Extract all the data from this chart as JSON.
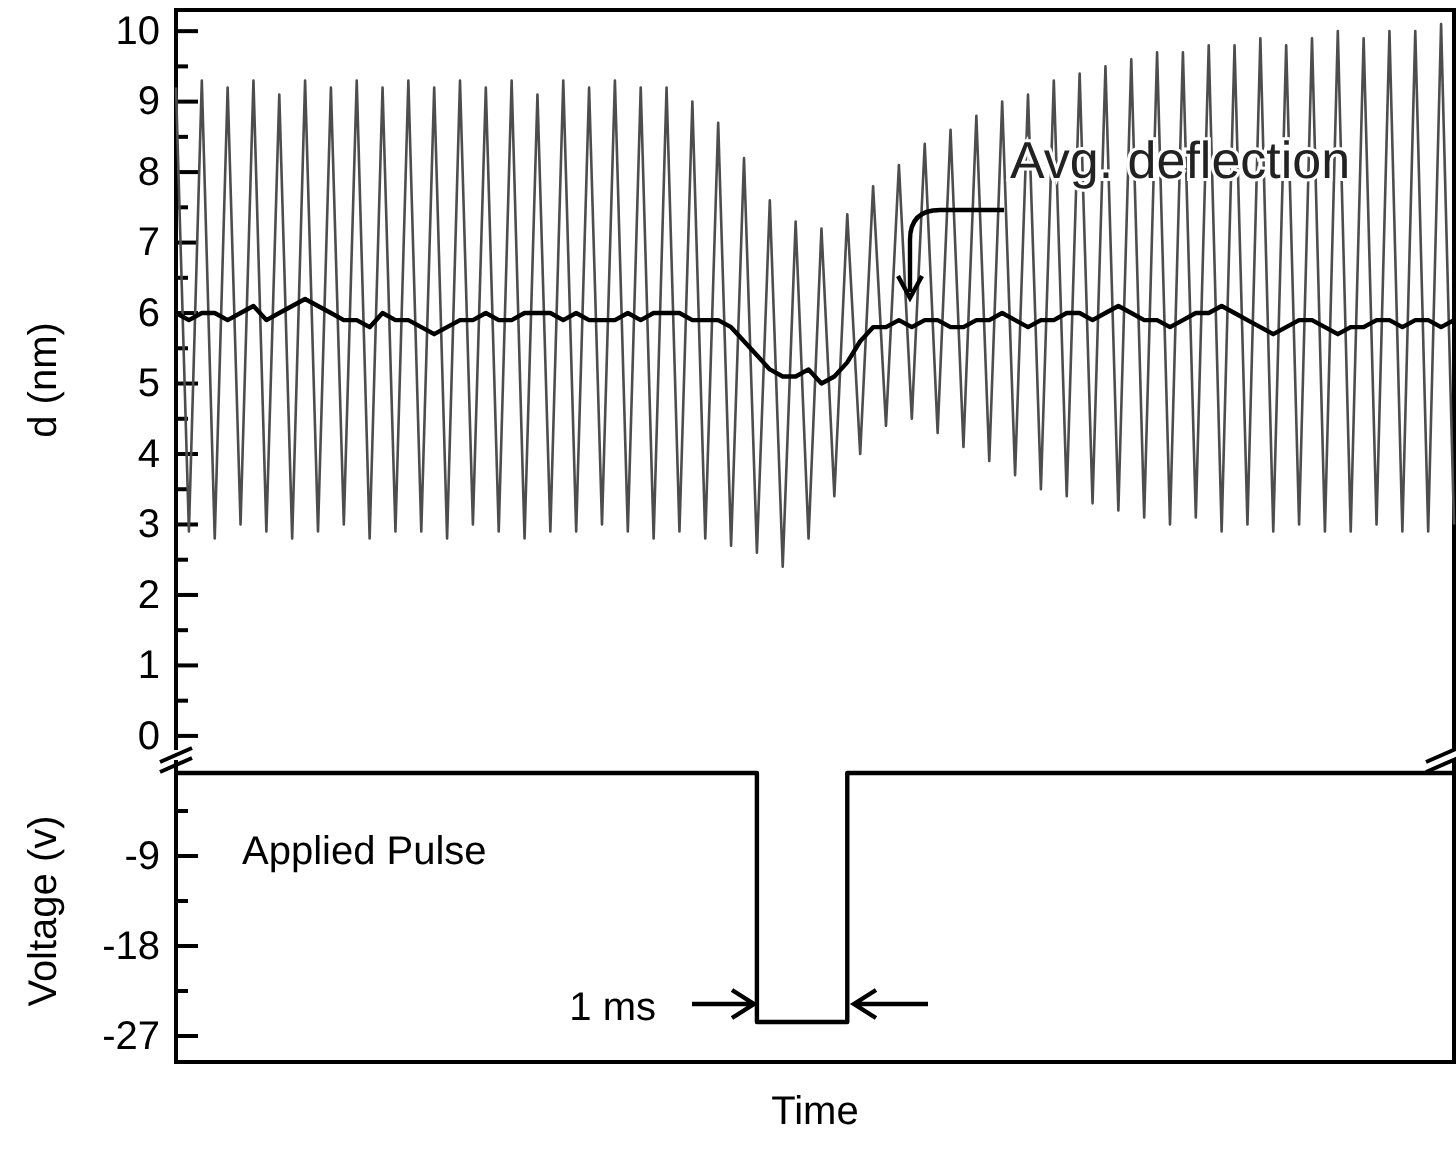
{
  "chart_data": [
    {
      "type": "line",
      "ylabel": "d (nm)",
      "categories": [
        null,
        null,
        null,
        null,
        null,
        null,
        null,
        null,
        null,
        null,
        null,
        null,
        null,
        null,
        null,
        null,
        null,
        null,
        null,
        null,
        null,
        null,
        null,
        null,
        null,
        null,
        null,
        null,
        null,
        null,
        null,
        null,
        null,
        null,
        null,
        null,
        null,
        null,
        null,
        null,
        null,
        null,
        null,
        null,
        null,
        null,
        null,
        null,
        null,
        null,
        null,
        null,
        null,
        null,
        null,
        null,
        null,
        null,
        null,
        null,
        null,
        null,
        null,
        null,
        null,
        null,
        null,
        null,
        null,
        null,
        null,
        null,
        null,
        null,
        null,
        null,
        null,
        null,
        null,
        null,
        null,
        null,
        null,
        null,
        null,
        null,
        null,
        null,
        null,
        null,
        null,
        null,
        null,
        null,
        null,
        null,
        null,
        null,
        null,
        null
      ],
      "series": [
        {
          "color": "#4d4d4d",
          "values": [
            9.2,
            2.9,
            9.3,
            2.8,
            9.2,
            3.0,
            9.3,
            2.9,
            9.1,
            2.8,
            9.3,
            2.9,
            9.2,
            3.0,
            9.3,
            2.8,
            9.2,
            2.9,
            9.3,
            2.9,
            9.2,
            2.8,
            9.3,
            3.0,
            9.2,
            2.9,
            9.3,
            2.8,
            9.1,
            2.9,
            9.3,
            2.9,
            9.2,
            3.0,
            9.3,
            2.9,
            9.2,
            2.8,
            9.2,
            2.9,
            9.0,
            2.8,
            8.7,
            2.7,
            8.2,
            2.6,
            7.6,
            2.4,
            7.3,
            2.8,
            7.2,
            3.4,
            7.4,
            4.0,
            7.8,
            4.4,
            8.1,
            4.5,
            8.4,
            4.3,
            8.6,
            4.1,
            8.8,
            3.9,
            9.0,
            3.7,
            9.1,
            3.5,
            9.3,
            3.4,
            9.4,
            3.3,
            9.5,
            3.2,
            9.6,
            3.1,
            9.7,
            3.0,
            9.7,
            3.1,
            9.8,
            2.9,
            9.8,
            3.0,
            9.9,
            2.9,
            9.8,
            3.0,
            9.9,
            2.9,
            10.0,
            2.9,
            9.9,
            3.0,
            10.0,
            2.9,
            10.0,
            2.9,
            10.1,
            3.0
          ]
        },
        {
          "name": "Avg. deflection",
          "color": "#000000",
          "values": [
            6.0,
            5.9,
            6.0,
            6.0,
            5.9,
            6.0,
            6.1,
            5.9,
            6.0,
            6.1,
            6.2,
            6.1,
            6.0,
            5.9,
            5.9,
            5.8,
            6.0,
            5.9,
            5.9,
            5.8,
            5.7,
            5.8,
            5.9,
            5.9,
            6.0,
            5.9,
            5.9,
            6.0,
            6.0,
            6.0,
            5.9,
            6.0,
            5.9,
            5.9,
            5.9,
            6.0,
            5.9,
            6.0,
            6.0,
            6.0,
            5.9,
            5.9,
            5.9,
            5.8,
            5.6,
            5.4,
            5.2,
            5.1,
            5.1,
            5.2,
            5.0,
            5.1,
            5.3,
            5.6,
            5.8,
            5.8,
            5.9,
            5.8,
            5.9,
            5.9,
            5.8,
            5.8,
            5.9,
            5.9,
            6.0,
            5.9,
            5.8,
            5.9,
            5.9,
            6.0,
            6.0,
            5.9,
            6.0,
            6.1,
            6.0,
            5.9,
            5.9,
            5.8,
            5.9,
            6.0,
            6.0,
            6.1,
            6.0,
            5.9,
            5.8,
            5.7,
            5.8,
            5.9,
            5.9,
            5.8,
            5.7,
            5.8,
            5.8,
            5.9,
            5.9,
            5.8,
            5.9,
            5.9,
            5.8,
            5.9
          ]
        }
      ],
      "ylim": [
        -0.2,
        10.3
      ],
      "yticks": [
        0,
        {
          "value": 0.5,
          "label": null
        },
        1,
        {
          "value": 1.5,
          "label": null
        },
        2,
        {
          "value": 2.5,
          "label": null
        },
        3,
        {
          "value": 3.5,
          "label": null
        },
        4,
        {
          "value": 4.5,
          "label": null
        },
        5,
        {
          "value": 5.5,
          "label": null
        },
        6,
        {
          "value": 6.5,
          "label": null
        },
        7,
        {
          "value": 7.5,
          "label": null
        },
        8,
        {
          "value": 8.5,
          "label": null
        },
        9,
        {
          "value": 9.5,
          "label": null
        },
        10
      ],
      "tick_labels": "y"
    },
    {
      "type": "line",
      "xlabel": "Time",
      "ylabel": "Voltage (v)",
      "categories": [
        null,
        null,
        null,
        null,
        null,
        null,
        null,
        null,
        null,
        null,
        null,
        null,
        null,
        null,
        null,
        null,
        null,
        null,
        null,
        null,
        null,
        null,
        null,
        null,
        null,
        null,
        null,
        null,
        null,
        null,
        null,
        null,
        null,
        null,
        null,
        null,
        null,
        null,
        null,
        null,
        null,
        null,
        null,
        null,
        null,
        null,
        null,
        null,
        null,
        null,
        null,
        null,
        null,
        null,
        null,
        null,
        null,
        null,
        null,
        null,
        null,
        null,
        null,
        null,
        null,
        null,
        null,
        null,
        null,
        null,
        null,
        null,
        null,
        null,
        null,
        null,
        null,
        null,
        null,
        null,
        null,
        null,
        null,
        null,
        null,
        null,
        null,
        null,
        null,
        null,
        null,
        null,
        null,
        null,
        null,
        null,
        null,
        null,
        null,
        null
      ],
      "series": [
        {
          "type": "step",
          "color": "#000000",
          "values": [
            -0.7,
            -0.7,
            -0.7,
            -0.7,
            -0.7,
            -0.7,
            -0.7,
            -0.7,
            -0.7,
            -0.7,
            -0.7,
            -0.7,
            -0.7,
            -0.7,
            -0.7,
            -0.7,
            -0.7,
            -0.7,
            -0.7,
            -0.7,
            -0.7,
            -0.7,
            -0.7,
            -0.7,
            -0.7,
            -0.7,
            -0.7,
            -0.7,
            -0.7,
            -0.7,
            -0.7,
            -0.7,
            -0.7,
            -0.7,
            -0.7,
            -0.7,
            -0.7,
            -0.7,
            -0.7,
            -0.7,
            -0.7,
            -0.7,
            -0.7,
            -0.7,
            -0.7,
            -25.6,
            -25.6,
            -25.6,
            -25.6,
            -25.6,
            -25.6,
            -25.6,
            -0.7,
            -0.7,
            -0.7,
            -0.7,
            -0.7,
            -0.7,
            -0.7,
            -0.7,
            -0.7,
            -0.7,
            -0.7,
            -0.7,
            -0.7,
            -0.7,
            -0.7,
            -0.7,
            -0.7,
            -0.7,
            -0.7,
            -0.7,
            -0.7,
            -0.7,
            -0.7,
            -0.7,
            -0.7,
            -0.7,
            -0.7,
            -0.7,
            -0.7,
            -0.7,
            -0.7,
            -0.7,
            -0.7,
            -0.7,
            -0.7,
            -0.7,
            -0.7,
            -0.7,
            -0.7,
            -0.7,
            -0.7,
            -0.7,
            -0.7,
            -0.7,
            -0.7,
            -0.7,
            -0.7,
            -0.7
          ]
        }
      ],
      "ylim": [
        -29.6,
        0.6
      ],
      "yticks": [
        -27,
        {
          "value": -22.5,
          "label": null
        },
        -18,
        {
          "value": -13.5,
          "label": null
        },
        -9,
        {
          "value": -4.5,
          "label": null
        }
      ],
      "tick_labels": "y",
      "annotations": [
        "Applied Pulse",
        "1 ms"
      ]
    }
  ]
}
